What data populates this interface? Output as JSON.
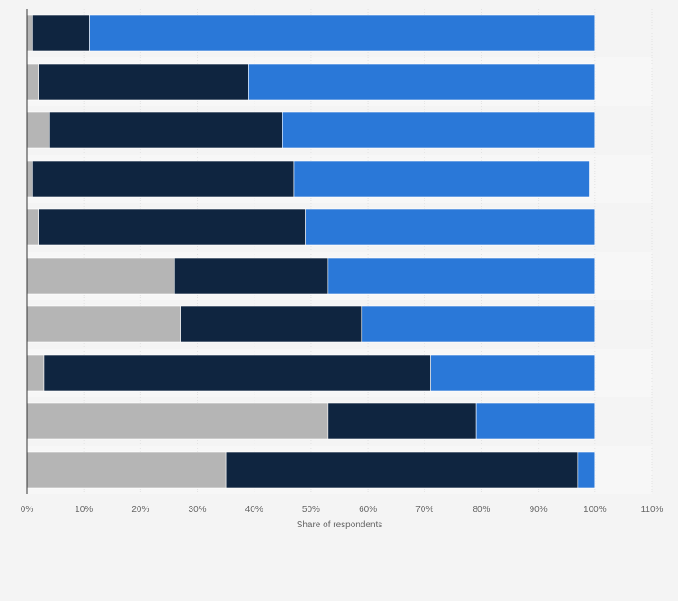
{
  "chart_data": {
    "type": "bar",
    "orientation": "horizontal",
    "stacked": true,
    "categories": [
      "",
      "",
      "",
      "",
      "",
      "",
      "",
      "",
      "",
      ""
    ],
    "series": [
      {
        "color": "#b5b5b5",
        "values": [
          1,
          2,
          4,
          1,
          2,
          26,
          27,
          3,
          53,
          35
        ]
      },
      {
        "color": "#0f2540",
        "values": [
          10,
          37,
          41,
          46,
          47,
          27,
          32,
          68,
          26,
          62
        ]
      },
      {
        "color": "#2a78d8",
        "values": [
          89,
          61,
          55,
          52,
          51,
          47,
          41,
          29,
          21,
          3
        ]
      }
    ],
    "xlabel": "Share of respondents",
    "ylabel": "",
    "xlim": [
      0,
      110
    ],
    "x_ticks": [
      "0%",
      "10%",
      "20%",
      "30%",
      "40%",
      "50%",
      "60%",
      "70%",
      "80%",
      "90%",
      "100%",
      "110%"
    ],
    "grid": true,
    "legend": "none"
  }
}
